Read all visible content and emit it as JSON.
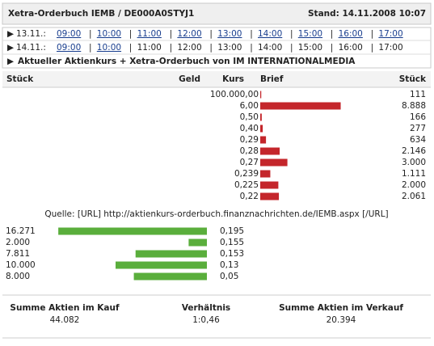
{
  "header": {
    "title": "Xetra-Orderbuch IEMB / DE000A0STYJ1",
    "stand": "Stand: 14.11.2008 10:07"
  },
  "nav": [
    {
      "date": "13.11.:",
      "links": [
        "09:00",
        "10:00",
        "11:00",
        "12:00",
        "13:00",
        "14:00",
        "15:00",
        "16:00",
        "17:00"
      ],
      "times": []
    },
    {
      "date": "14.11.:",
      "links": [
        "09:00",
        "10:00"
      ],
      "times": [
        "11:00",
        "12:00",
        "13:00",
        "14:00",
        "15:00",
        "16:00",
        "17:00"
      ]
    }
  ],
  "current": "Aktueller Aktienkurs + Xetra-Orderbuch von IM INTERNATIONALMEDIA",
  "columns": [
    "Stück",
    "Geld",
    "Kurs",
    "Brief",
    "Stück"
  ],
  "sell": [
    {
      "kurs": "100.000,00",
      "stueck": {
        "value": 111,
        "label": "111"
      }
    },
    {
      "kurs": "6,00",
      "stueck": {
        "value": 8888,
        "label": "8.888"
      }
    },
    {
      "kurs": "0,50",
      "stueck": {
        "value": 166,
        "label": "166"
      }
    },
    {
      "kurs": "0,40",
      "stueck": {
        "value": 277,
        "label": "277"
      }
    },
    {
      "kurs": "0,29",
      "stueck": {
        "value": 634,
        "label": "634"
      }
    },
    {
      "kurs": "0,28",
      "stueck": {
        "value": 2146,
        "label": "2.146"
      }
    },
    {
      "kurs": "0,27",
      "stueck": {
        "value": 3000,
        "label": "3.000"
      }
    },
    {
      "kurs": "0,239",
      "stueck": {
        "value": 1111,
        "label": "1.111"
      }
    },
    {
      "kurs": "0,225",
      "stueck": {
        "value": 2000,
        "label": "2.000"
      }
    },
    {
      "kurs": "0,22",
      "stueck": {
        "value": 2061,
        "label": "2.061"
      }
    }
  ],
  "source": "Quelle: [URL] http://aktienkurs-orderbuch.finanznachrichten.de/IEMB.aspx [/URL]",
  "buy": [
    {
      "kurs": "0,195",
      "stueck": {
        "value": 16271,
        "label": "16.271"
      }
    },
    {
      "kurs": "0,155",
      "stueck": {
        "value": 2000,
        "label": "2.000"
      }
    },
    {
      "kurs": "0,153",
      "stueck": {
        "value": 7811,
        "label": "7.811"
      }
    },
    {
      "kurs": "0,13",
      "stueck": {
        "value": 10000,
        "label": "10.000"
      }
    },
    {
      "kurs": "0,05",
      "stueck": {
        "value": 8000,
        "label": "8.000"
      }
    }
  ],
  "summary": {
    "buy_label": "Summe Aktien im Kauf",
    "buy_total": "44.082",
    "ratio_label": "Verhältnis",
    "ratio": "1:0,46",
    "sell_label": "Summe Aktien im Verkauf",
    "sell_total": "20.394"
  }
}
